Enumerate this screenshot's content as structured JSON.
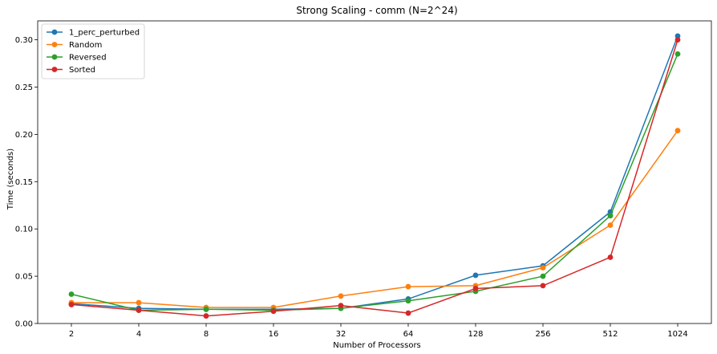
{
  "chart_data": {
    "type": "line",
    "title": "Strong Scaling - comm (N=2^24)",
    "xlabel": "Number of Processors",
    "ylabel": "Time (seconds)",
    "categories": [
      "2",
      "4",
      "8",
      "16",
      "32",
      "64",
      "128",
      "256",
      "512",
      "1024"
    ],
    "ylim": [
      0,
      0.32
    ],
    "yticks": [
      "0.00",
      "0.05",
      "0.10",
      "0.15",
      "0.20",
      "0.25",
      "0.30"
    ],
    "ytick_values": [
      0,
      0.05,
      0.1,
      0.15,
      0.2,
      0.25,
      0.3
    ],
    "grid": false,
    "legend_position": "top-left",
    "series": [
      {
        "name": "1_perc_perturbed",
        "color": "#1f77b4",
        "values": [
          0.021,
          0.016,
          0.015,
          0.015,
          0.016,
          0.026,
          0.051,
          0.061,
          0.118,
          0.304
        ]
      },
      {
        "name": "Random",
        "color": "#ff7f0e",
        "values": [
          0.022,
          0.022,
          0.017,
          0.017,
          0.029,
          0.039,
          0.04,
          0.059,
          0.104,
          0.204
        ]
      },
      {
        "name": "Reversed",
        "color": "#2ca02c",
        "values": [
          0.031,
          0.014,
          0.015,
          0.014,
          0.016,
          0.024,
          0.034,
          0.05,
          0.114,
          0.285
        ]
      },
      {
        "name": "Sorted",
        "color": "#d62728",
        "values": [
          0.02,
          0.014,
          0.008,
          0.013,
          0.019,
          0.011,
          0.037,
          0.04,
          0.07,
          0.3
        ]
      }
    ]
  }
}
